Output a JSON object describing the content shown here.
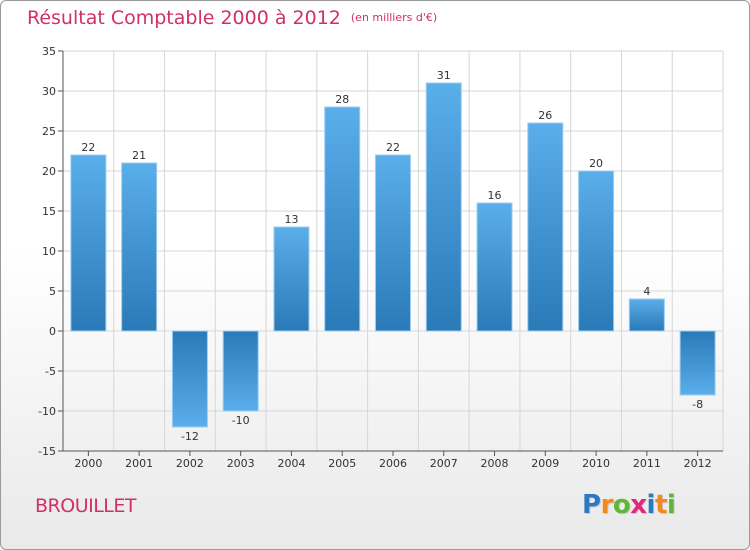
{
  "header": {
    "title": "Résultat Comptable 2000 à 2012",
    "subtitle": "(en milliers d'€)"
  },
  "footer": {
    "town": "BROUILLET",
    "logo_letters": [
      "P",
      "r",
      "o",
      "x",
      "i",
      "t",
      "i"
    ]
  },
  "colors": {
    "title": "#d0306a",
    "bar_light": "#5aaeea",
    "bar_dark": "#2a7ab8",
    "logo": [
      "#2a79c4",
      "#f08a1c",
      "#5db833",
      "#e0287a",
      "#2a79c4",
      "#f08a1c",
      "#5db833"
    ]
  },
  "chart_data": {
    "type": "bar",
    "categories": [
      "2000",
      "2001",
      "2002",
      "2003",
      "2004",
      "2005",
      "2006",
      "2007",
      "2008",
      "2009",
      "2010",
      "2011",
      "2012"
    ],
    "values": [
      22,
      21,
      -12,
      -10,
      13,
      28,
      22,
      31,
      16,
      26,
      20,
      4,
      -8
    ],
    "data_labels": [
      "22",
      "21",
      "-12",
      "-10",
      "13",
      "28",
      "22",
      "31",
      "16",
      "26",
      "20",
      "4",
      "-8"
    ],
    "title": "Résultat Comptable 2000 à 2012",
    "subtitle": "(en milliers d'€)",
    "xlabel": "",
    "ylabel": "",
    "ylim": [
      -15,
      35
    ],
    "yticks": [
      35,
      30,
      25,
      20,
      15,
      10,
      5,
      0,
      -5,
      -10,
      -15
    ],
    "ytick_labels": [
      "35",
      "30",
      "25",
      "20",
      "15",
      "10",
      "5",
      "0",
      "-5",
      "-10",
      "-15"
    ],
    "grid": true,
    "legend": "none"
  }
}
